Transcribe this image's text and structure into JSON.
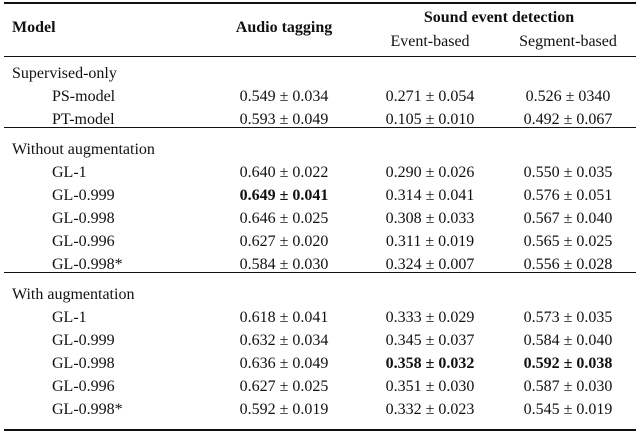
{
  "header": {
    "model": "Model",
    "audio_tagging": "Audio tagging",
    "sed": "Sound event detection",
    "event_based": "Event-based",
    "segment_based": "Segment-based"
  },
  "groups": [
    {
      "title": "Supervised-only",
      "rows": [
        {
          "model": "PS-model",
          "cells": [
            "0.549 ± 0.034",
            "0.271 ± 0.054",
            "0.526 ± 0340"
          ]
        },
        {
          "model": "PT-model",
          "cells": [
            "0.593 ± 0.049",
            "0.105 ± 0.010",
            "0.492 ± 0.067"
          ]
        }
      ]
    },
    {
      "title": "Without augmentation",
      "rows": [
        {
          "model": "GL-1",
          "cells": [
            "0.640 ± 0.022",
            "0.290 ± 0.026",
            "0.550 ± 0.035"
          ]
        },
        {
          "model": "GL-0.999",
          "cells": [
            "0.649 ± 0.041",
            "0.314 ± 0.041",
            "0.576 ± 0.051"
          ],
          "bold": [
            0
          ]
        },
        {
          "model": "GL-0.998",
          "cells": [
            "0.646 ± 0.025",
            "0.308 ± 0.033",
            "0.567 ± 0.040"
          ]
        },
        {
          "model": "GL-0.996",
          "cells": [
            "0.627 ± 0.020",
            "0.311 ± 0.019",
            "0.565 ± 0.025"
          ]
        },
        {
          "model": "GL-0.998*",
          "cells": [
            "0.584 ± 0.030",
            "0.324 ± 0.007",
            "0.556 ± 0.028"
          ]
        }
      ]
    },
    {
      "title": "With augmentation",
      "rows": [
        {
          "model": "GL-1",
          "cells": [
            "0.618 ± 0.041",
            "0.333 ± 0.029",
            "0.573 ± 0.035"
          ]
        },
        {
          "model": "GL-0.999",
          "cells": [
            "0.632 ± 0.034",
            "0.345 ± 0.037",
            "0.584 ± 0.040"
          ]
        },
        {
          "model": "GL-0.998",
          "cells": [
            "0.636 ± 0.049",
            "0.358 ± 0.032",
            "0.592 ± 0.038"
          ],
          "bold": [
            1,
            2
          ]
        },
        {
          "model": "GL-0.996",
          "cells": [
            "0.627 ± 0.025",
            "0.351 ± 0.030",
            "0.587 ± 0.030"
          ]
        },
        {
          "model": "GL-0.998*",
          "cells": [
            "0.592 ± 0.019",
            "0.332 ± 0.023",
            "0.545 ± 0.019"
          ]
        }
      ]
    }
  ]
}
